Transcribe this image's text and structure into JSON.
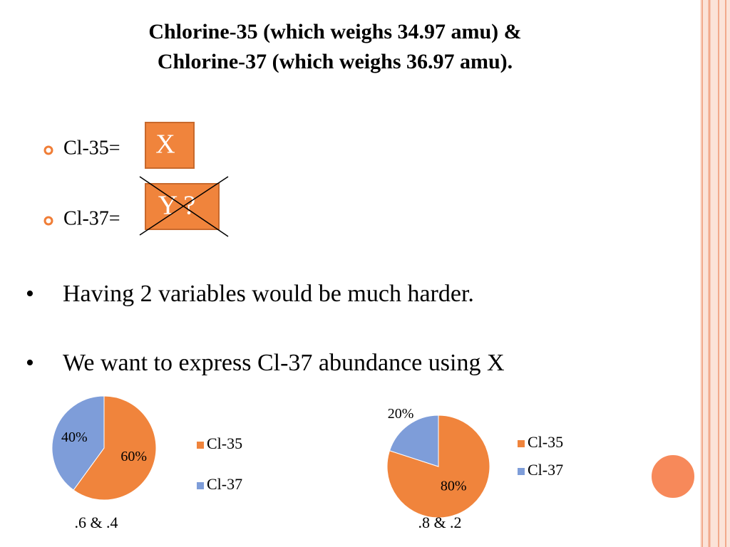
{
  "title": [
    "Chlorine-35 (which weighs 34.97 amu) &",
    "Chlorine-37 (which weighs 36.97 amu)."
  ],
  "items": [
    "Cl-35=",
    "Cl-37="
  ],
  "boxes": [
    "X",
    "Y ?"
  ],
  "bullets": [
    "Having 2 variables would be much harder.",
    "We want to express Cl-37 abundance using X"
  ],
  "chart_data": [
    {
      "type": "pie",
      "categories": [
        "Cl-35",
        "Cl-37"
      ],
      "values": [
        60,
        40
      ],
      "value_labels": [
        "60%",
        "40%"
      ],
      "colors": [
        "#f0843c",
        "#7e9dd9"
      ],
      "caption": ".6 & .4"
    },
    {
      "type": "pie",
      "categories": [
        "Cl-35",
        "Cl-37"
      ],
      "values": [
        80,
        20
      ],
      "value_labels": [
        "80%",
        "20%"
      ],
      "colors": [
        "#f0843c",
        "#7e9dd9"
      ],
      "caption": ".8 & .2"
    }
  ]
}
